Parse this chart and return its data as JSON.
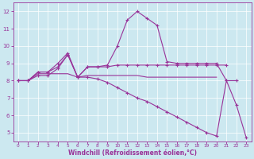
{
  "xlabel": "Windchill (Refroidissement éolien,°C)",
  "bg_color": "#cce8f0",
  "line_color": "#993399",
  "grid_color": "#ffffff",
  "xlim": [
    -0.5,
    23.5
  ],
  "ylim": [
    4.5,
    12.5
  ],
  "xticks": [
    0,
    1,
    2,
    3,
    4,
    5,
    6,
    7,
    8,
    9,
    10,
    11,
    12,
    13,
    14,
    15,
    16,
    17,
    18,
    19,
    20,
    21,
    22,
    23
  ],
  "yticks": [
    5,
    6,
    7,
    8,
    9,
    10,
    11,
    12
  ],
  "series": [
    {
      "x": [
        0,
        1,
        2,
        3,
        4,
        5,
        6,
        7,
        8,
        9,
        10,
        11,
        12,
        13,
        14,
        15,
        16,
        17,
        18,
        19,
        20,
        21,
        22
      ],
      "y": [
        8.0,
        8.0,
        8.5,
        8.5,
        9.0,
        9.6,
        8.2,
        8.8,
        8.8,
        8.9,
        10.0,
        11.5,
        12.0,
        11.6,
        11.2,
        9.1,
        9.0,
        9.0,
        9.0,
        9.0,
        9.0,
        8.0,
        8.0
      ],
      "marker": "+",
      "markersize": 3.5,
      "lw": 0.8
    },
    {
      "x": [
        0,
        1,
        2,
        3,
        4,
        5,
        6,
        7,
        8,
        9,
        10,
        11,
        12,
        13,
        14,
        15,
        16,
        17,
        18,
        19,
        20,
        21
      ],
      "y": [
        8.0,
        8.0,
        8.5,
        8.5,
        8.8,
        9.5,
        8.2,
        8.8,
        8.8,
        8.8,
        8.9,
        8.9,
        8.9,
        8.9,
        8.9,
        8.9,
        8.9,
        8.9,
        8.9,
        8.9,
        8.9,
        8.9
      ],
      "marker": "+",
      "markersize": 3.5,
      "lw": 0.8
    },
    {
      "x": [
        0,
        1,
        2,
        3,
        4,
        5,
        6,
        7,
        8,
        9,
        10,
        11,
        12,
        13,
        14,
        15,
        16,
        17,
        18,
        19,
        20
      ],
      "y": [
        8.0,
        8.0,
        8.4,
        8.4,
        8.4,
        8.4,
        8.2,
        8.3,
        8.3,
        8.3,
        8.3,
        8.3,
        8.3,
        8.2,
        8.2,
        8.2,
        8.2,
        8.2,
        8.2,
        8.2,
        8.2
      ],
      "marker": null,
      "markersize": 0,
      "lw": 0.8
    },
    {
      "x": [
        0,
        1,
        2,
        3,
        4,
        5,
        6,
        7,
        8,
        9,
        10,
        11,
        12,
        13,
        14,
        15,
        16,
        17,
        18,
        19,
        20,
        21,
        22,
        23
      ],
      "y": [
        8.0,
        8.0,
        8.3,
        8.3,
        8.7,
        9.5,
        8.2,
        8.2,
        8.1,
        7.9,
        7.6,
        7.3,
        7.0,
        6.8,
        6.5,
        6.2,
        5.9,
        5.6,
        5.3,
        5.0,
        4.8,
        8.0,
        6.6,
        4.7
      ],
      "marker": "+",
      "markersize": 3.5,
      "lw": 0.8
    }
  ]
}
